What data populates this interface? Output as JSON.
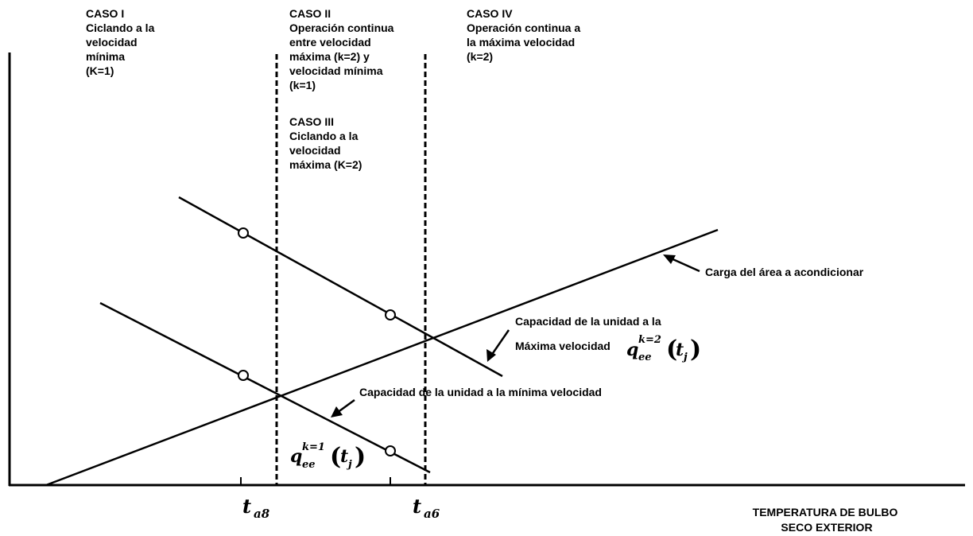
{
  "cases": {
    "caso1": [
      "CASO I",
      "Ciclando a la",
      "velocidad",
      "mínima",
      "(K=1)"
    ],
    "caso2": [
      "CASO II",
      "Operación continua",
      "entre velocidad",
      "máxima (k=2) y",
      "velocidad mínima",
      "(k=1)"
    ],
    "caso3": [
      "CASO III",
      "Ciclando a la",
      "velocidad",
      "máxima (K=2)"
    ],
    "caso4": [
      "CASO IV",
      "Operación continua a",
      "la máxima velocidad",
      "(k=2)"
    ]
  },
  "annotations": {
    "carga": "Carga del área a acondicionar",
    "cap_max_line1": "Capacidad de la unidad a la",
    "cap_max_line2": "Máxima velocidad",
    "cap_min": "Capacidad de la unidad a la mínima velocidad"
  },
  "formulas": {
    "q_max": {
      "base": "q",
      "sup": "k=2",
      "sub": "ee",
      "arg": "t",
      "arg_sub": "j"
    },
    "q_min": {
      "base": "q",
      "sup": "k=1",
      "sub": "ee",
      "arg": "t",
      "arg_sub": "j"
    }
  },
  "axis": {
    "x_title_line1": "TEMPERATURA DE BULBO",
    "x_title_line2": "SECO EXTERIOR",
    "tick_a8": {
      "base": "t",
      "sub": "a8"
    },
    "tick_a6": {
      "base": "t",
      "sub": "a6"
    }
  }
}
